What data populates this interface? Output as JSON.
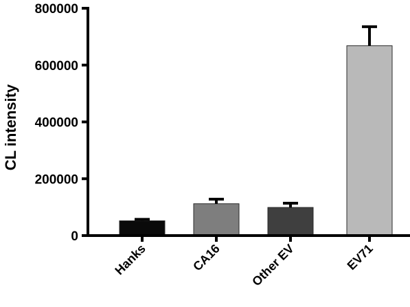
{
  "chart_data": {
    "type": "bar",
    "title": "",
    "xlabel": "",
    "ylabel": "CL intensity",
    "ylim": [
      0,
      800000
    ],
    "yticks": [
      0,
      200000,
      400000,
      600000,
      800000
    ],
    "ytick_labels": [
      "0",
      "200000",
      "400000",
      "600000",
      "800000"
    ],
    "grid": false,
    "legend": "none",
    "categories": [
      "Hanks",
      "CA16",
      "Other EV",
      "EV71"
    ],
    "values": [
      52000,
      112000,
      99000,
      668000
    ],
    "errors": [
      5000,
      16000,
      15000,
      67000
    ],
    "colors": [
      "#0a0a0a",
      "#7e7e7e",
      "#3f3f3f",
      "#b9b9b9"
    ]
  }
}
